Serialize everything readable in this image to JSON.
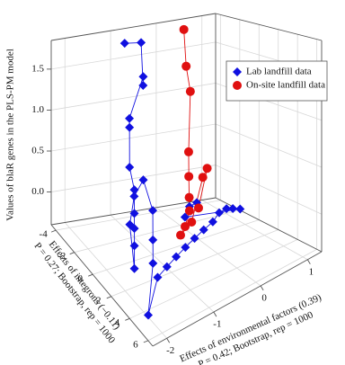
{
  "chart_data": {
    "type": "scatter3d",
    "zlabel": "Values of blaR genes in the PLS-PM model",
    "ylabel": [
      "Effects of integrons (−0.11)",
      "P = 0.27; Bootstrap, rep = 1000"
    ],
    "xlabel": [
      "Effects of environmental factors (0.39)",
      "P = 0.42; Bootstrap, rep = 1000"
    ],
    "xlim": [
      -2.3,
      1.3
    ],
    "ylim": [
      -4.5,
      6.5
    ],
    "zlim": [
      -0.4,
      1.85
    ],
    "xticks": [
      -2,
      -1,
      0,
      1
    ],
    "yticks": [
      -4,
      -2,
      0,
      2,
      4,
      6
    ],
    "zticks": [
      {
        "value": 0,
        "label": "0.0"
      },
      0.5,
      {
        "value": 1,
        "label": "1.0"
      },
      1.5
    ],
    "grid": true,
    "legend": "upper right",
    "series": [
      {
        "name": "Lab landfill data",
        "color": "#1010e0",
        "marker": "diamond",
        "x": [
          -1.0,
          -0.6,
          -0.7,
          -0.8,
          -1.1,
          -1.2,
          -1.3,
          -1.4,
          -1.5,
          -1.6,
          -1.8,
          -2.0,
          -1.9,
          -1.2,
          -0.9,
          -1.0,
          -1.2,
          -1.5,
          -2.1,
          -1.5,
          -1.2,
          -0.9,
          -0.6,
          -0.3,
          0.0,
          0.3,
          0.5,
          0.7,
          0.9,
          1.1,
          -0.2,
          0.0,
          0.2
        ],
        "y": [
          -3,
          -3.2,
          -2.5,
          -2,
          -2,
          -1.5,
          -1,
          0,
          0.5,
          1,
          2,
          3,
          2,
          -1,
          -1.5,
          0,
          1,
          2.5,
          5,
          3,
          2.5,
          2,
          1.5,
          1,
          0.5,
          0,
          -0.3,
          -0.5,
          -0.8,
          -1,
          -0.5,
          -1,
          -1.2
        ],
        "z": [
          1.8,
          1.75,
          1.3,
          1.45,
          1.0,
          0.95,
          0.55,
          0.4,
          0.2,
          0.1,
          0.05,
          -0.05,
          0.3,
          0.2,
          0.3,
          0.1,
          -0.1,
          -0.15,
          -0.3,
          -0.25,
          -0.25,
          -0.25,
          -0.25,
          -0.25,
          -0.25,
          -0.25,
          -0.2,
          -0.2,
          -0.25,
          -0.3,
          -0.15,
          -0.1,
          -0.1
        ]
      },
      {
        "name": "On-site landfill data",
        "color": "#e01010",
        "marker": "circle",
        "x": [
          0.5,
          0.55,
          0.6,
          0.5,
          0.4,
          0.2,
          0.0,
          -0.3,
          -0.5,
          -0.2,
          0.6,
          0.8,
          0.3
        ],
        "y": [
          -4,
          -4,
          -3.8,
          -3.5,
          -3,
          -2,
          -1,
          0,
          0.5,
          0.2,
          -2.5,
          -3,
          -1.5
        ],
        "z": [
          1.75,
          1.3,
          1.0,
          0.3,
          0.05,
          -0.1,
          -0.15,
          -0.2,
          -0.22,
          -0.15,
          0.05,
          0.1,
          -0.2
        ]
      }
    ]
  }
}
